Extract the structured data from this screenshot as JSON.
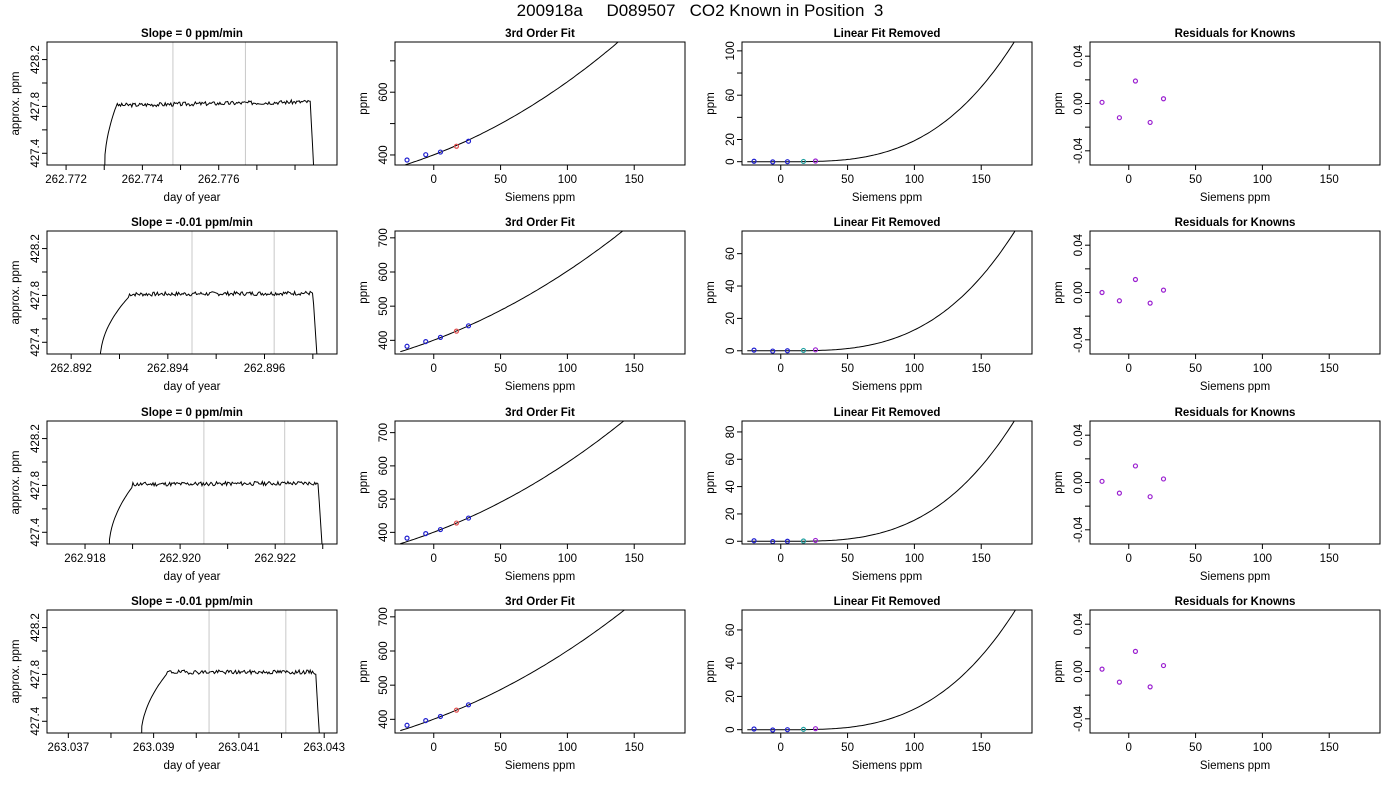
{
  "title": "200918a     D089507   CO2 Known in Position  3",
  "colors": {
    "trace": "#000000",
    "marker_line": "#c8c8c8",
    "dot_blue": "#1f1fd0",
    "dot_purple": "#9a1fd0",
    "dot_red": "#e05050",
    "dot_cyan": "#20a0a0"
  },
  "chart_data": [
    {
      "type": "line",
      "panel": "time-series",
      "row": 1,
      "title": "Slope =  0  ppm/min",
      "xlabel": "day of year",
      "ylabel": "approx. ppm",
      "xlim": [
        262.7715,
        262.7791
      ],
      "ylim": [
        427.3,
        428.35
      ],
      "xticks": [
        262.772,
        262.773,
        262.774,
        262.775,
        262.776,
        262.777,
        262.778
      ],
      "xtick_labels": [
        "262.772",
        "",
        "262.774",
        "",
        "262.776",
        "",
        ""
      ],
      "yticks": [
        427.4,
        427.6,
        427.8,
        428.0,
        428.2
      ],
      "ytick_labels": [
        "427.4",
        "",
        "427.8",
        "",
        "428.2"
      ],
      "vlines": [
        262.7748,
        262.7767
      ],
      "profile": {
        "t_start": 262.773,
        "t_top": 262.7733,
        "t_end": 262.7784,
        "t_drop": 262.7785,
        "plateau": 427.81,
        "end": 427.84,
        "seed": 3
      }
    },
    {
      "type": "line",
      "panel": "fit",
      "row": 1,
      "title": "3rd Order Fit",
      "xlabel": "Siemens ppm",
      "ylabel": "ppm",
      "xlim": [
        -29,
        188
      ],
      "ylim": [
        368,
        760
      ],
      "xticks": [
        0,
        50,
        100,
        150
      ],
      "xtick_labels": [
        "0",
        "50",
        "100",
        "150"
      ],
      "yticks": [
        400,
        500,
        600,
        700
      ],
      "ytick_labels": [
        "400",
        "",
        "600",
        ""
      ],
      "curve": {
        "x_start": -25,
        "x_end": 180,
        "coef": [
          400.5,
          1.64,
          0.00655,
          3.2e-06
        ]
      },
      "points": [
        {
          "x": -20,
          "y": 384,
          "c": "blue"
        },
        {
          "x": -6,
          "y": 400.9,
          "c": "blue"
        },
        {
          "x": 5,
          "y": 409.2,
          "c": "blue"
        },
        {
          "x": 17,
          "y": 427.7,
          "c": "red"
        },
        {
          "x": 26,
          "y": 443.8,
          "c": "blue"
        }
      ]
    },
    {
      "type": "line",
      "panel": "linear-removed",
      "row": 1,
      "title": "Linear Fit Removed",
      "xlabel": "Siemens ppm",
      "ylabel": "ppm",
      "xlim": [
        -29,
        188
      ],
      "ylim": [
        -3,
        108
      ],
      "xticks": [
        0,
        50,
        100,
        150
      ],
      "xtick_labels": [
        "0",
        "50",
        "100",
        "150"
      ],
      "yticks": [
        0,
        20,
        40,
        60,
        80,
        100
      ],
      "ytick_labels": [
        "0",
        "20",
        "",
        "60",
        "",
        "100"
      ],
      "curve": {
        "x_start": -25,
        "x_end": 180,
        "coef": [
          0,
          0,
          0,
          0
        ],
        "cubic_from": 5,
        "cubic_scale": 2.21e-05
      },
      "points": [
        {
          "x": -20,
          "y": 0.4,
          "c": "blue"
        },
        {
          "x": -6,
          "y": -0.2,
          "c": "blue"
        },
        {
          "x": 5,
          "y": 0.0,
          "c": "blue"
        },
        {
          "x": 17,
          "y": 0.2,
          "c": "cyan"
        },
        {
          "x": 26,
          "y": 0.6,
          "c": "purple"
        }
      ]
    },
    {
      "type": "scatter",
      "panel": "residuals",
      "row": 1,
      "title": "Residuals for Knowns",
      "xlabel": "Siemens ppm",
      "ylabel": "ppm",
      "xlim": [
        -29,
        188
      ],
      "ylim": [
        -0.052,
        0.052
      ],
      "xticks": [
        0,
        50,
        100,
        150
      ],
      "xtick_labels": [
        "0",
        "50",
        "100",
        "150"
      ],
      "yticks": [
        -0.04,
        -0.02,
        0.0,
        0.02,
        0.04
      ],
      "ytick_labels": [
        "-0.04",
        "",
        "0.00",
        "",
        "0.04"
      ],
      "points": [
        {
          "x": -20,
          "y": 0.001,
          "c": "purple"
        },
        {
          "x": -7,
          "y": -0.012,
          "c": "purple"
        },
        {
          "x": 5,
          "y": 0.019,
          "c": "purple"
        },
        {
          "x": 16,
          "y": -0.016,
          "c": "purple"
        },
        {
          "x": 26,
          "y": 0.004,
          "c": "purple"
        }
      ]
    },
    {
      "type": "line",
      "panel": "time-series",
      "row": 2,
      "title": "Slope =  -0.01  ppm/min",
      "xlabel": "day of year",
      "ylabel": "approx. ppm",
      "xlim": [
        262.8915,
        262.8975
      ],
      "ylim": [
        427.3,
        428.35
      ],
      "xticks": [
        262.892,
        262.893,
        262.894,
        262.895,
        262.896,
        262.897
      ],
      "xtick_labels": [
        "262.892",
        "",
        "262.894",
        "",
        "262.896",
        ""
      ],
      "yticks": [
        427.4,
        427.6,
        427.8,
        428.0,
        428.2
      ],
      "ytick_labels": [
        "427.4",
        "",
        "427.8",
        "",
        "428.2"
      ],
      "vlines": [
        262.8945,
        262.8962
      ],
      "profile": {
        "t_start": 262.8926,
        "t_top": 262.8932,
        "t_end": 262.897,
        "t_drop": 262.8971,
        "plateau": 427.81,
        "end": 427.82,
        "seed": 7
      }
    },
    {
      "type": "line",
      "panel": "fit",
      "row": 2,
      "title": "3rd Order Fit",
      "xlabel": "Siemens ppm",
      "ylabel": "ppm",
      "xlim": [
        -29,
        188
      ],
      "ylim": [
        360,
        720
      ],
      "xticks": [
        0,
        50,
        100,
        150
      ],
      "xtick_labels": [
        "0",
        "50",
        "100",
        "150"
      ],
      "yticks": [
        400,
        500,
        600,
        700
      ],
      "ytick_labels": [
        "400",
        "500",
        "600",
        "700"
      ],
      "curve": {
        "x_start": -25,
        "x_end": 180,
        "coef": [
          400.5,
          1.48,
          0.0052,
          2.2e-06
        ]
      },
      "points": [
        {
          "x": -20,
          "y": 382.6,
          "c": "blue"
        },
        {
          "x": -6,
          "y": 396.3,
          "c": "blue"
        },
        {
          "x": 5,
          "y": 408.6,
          "c": "blue"
        },
        {
          "x": 17,
          "y": 427,
          "c": "red"
        },
        {
          "x": 26,
          "y": 442.5,
          "c": "blue"
        }
      ]
    },
    {
      "type": "line",
      "panel": "linear-removed",
      "row": 2,
      "title": "Linear Fit Removed",
      "xlabel": "Siemens ppm",
      "ylabel": "ppm",
      "xlim": [
        -29,
        188
      ],
      "ylim": [
        -2,
        74
      ],
      "xticks": [
        0,
        50,
        100,
        150
      ],
      "xtick_labels": [
        "0",
        "50",
        "100",
        "150"
      ],
      "yticks": [
        0,
        20,
        40,
        60
      ],
      "ytick_labels": [
        "0",
        "20",
        "40",
        "60"
      ],
      "curve": {
        "x_start": -25,
        "x_end": 180,
        "coef": [
          0,
          0,
          0,
          0
        ],
        "cubic_from": 5,
        "cubic_scale": 1.5e-05
      },
      "points": [
        {
          "x": -20,
          "y": 0.4,
          "c": "blue"
        },
        {
          "x": -6,
          "y": -0.2,
          "c": "blue"
        },
        {
          "x": 5,
          "y": 0.0,
          "c": "blue"
        },
        {
          "x": 17,
          "y": 0.2,
          "c": "cyan"
        },
        {
          "x": 26,
          "y": 0.6,
          "c": "purple"
        }
      ]
    },
    {
      "type": "scatter",
      "panel": "residuals",
      "row": 2,
      "title": "Residuals for Knowns",
      "xlabel": "Siemens ppm",
      "ylabel": "ppm",
      "xlim": [
        -29,
        188
      ],
      "ylim": [
        -0.052,
        0.052
      ],
      "xticks": [
        0,
        50,
        100,
        150
      ],
      "xtick_labels": [
        "0",
        "50",
        "100",
        "150"
      ],
      "yticks": [
        -0.04,
        -0.02,
        0.0,
        0.02,
        0.04
      ],
      "ytick_labels": [
        "-0.04",
        "",
        "0.00",
        "",
        "0.04"
      ],
      "points": [
        {
          "x": -20,
          "y": 0.0,
          "c": "purple"
        },
        {
          "x": -7,
          "y": -0.007,
          "c": "purple"
        },
        {
          "x": 5,
          "y": 0.011,
          "c": "purple"
        },
        {
          "x": 16,
          "y": -0.009,
          "c": "purple"
        },
        {
          "x": 26,
          "y": 0.002,
          "c": "purple"
        }
      ]
    },
    {
      "type": "line",
      "panel": "time-series",
      "row": 3,
      "title": "Slope =  0  ppm/min",
      "xlabel": "day of year",
      "ylabel": "approx. ppm",
      "xlim": [
        262.9172,
        262.9233
      ],
      "ylim": [
        427.3,
        428.35
      ],
      "xticks": [
        262.918,
        262.919,
        262.92,
        262.921,
        262.922,
        262.923
      ],
      "xtick_labels": [
        "262.918",
        "",
        "262.920",
        "",
        "262.922",
        ""
      ],
      "yticks": [
        427.4,
        427.6,
        427.8,
        428.0,
        428.2
      ],
      "ytick_labels": [
        "427.4",
        "",
        "427.8",
        "",
        "428.2"
      ],
      "vlines": [
        262.9205,
        262.9222
      ],
      "profile": {
        "t_start": 262.9185,
        "t_top": 262.919,
        "t_end": 262.9229,
        "t_drop": 262.923,
        "plateau": 427.81,
        "end": 427.82,
        "seed": 11
      }
    },
    {
      "type": "line",
      "panel": "fit",
      "row": 3,
      "title": "3rd Order Fit",
      "xlabel": "Siemens ppm",
      "ylabel": "ppm",
      "xlim": [
        -29,
        188
      ],
      "ylim": [
        365,
        735
      ],
      "xticks": [
        0,
        50,
        100,
        150
      ],
      "xtick_labels": [
        "0",
        "50",
        "100",
        "150"
      ],
      "yticks": [
        400,
        500,
        600,
        700
      ],
      "ytick_labels": [
        "400",
        "500",
        "600",
        "700"
      ],
      "curve": {
        "x_start": -25,
        "x_end": 180,
        "coef": [
          400.5,
          1.52,
          0.0055,
          2.6e-06
        ]
      },
      "points": [
        {
          "x": -20,
          "y": 382.7,
          "c": "blue"
        },
        {
          "x": -6,
          "y": 396.3,
          "c": "blue"
        },
        {
          "x": 5,
          "y": 408.4,
          "c": "blue"
        },
        {
          "x": 17,
          "y": 428,
          "c": "red"
        },
        {
          "x": 26,
          "y": 443,
          "c": "blue"
        }
      ]
    },
    {
      "type": "line",
      "panel": "linear-removed",
      "row": 3,
      "title": "Linear Fit Removed",
      "xlabel": "Siemens ppm",
      "ylabel": "ppm",
      "xlim": [
        -29,
        188
      ],
      "ylim": [
        -2,
        88
      ],
      "xticks": [
        0,
        50,
        100,
        150
      ],
      "xtick_labels": [
        "0",
        "50",
        "100",
        "150"
      ],
      "yticks": [
        0,
        20,
        40,
        60,
        80
      ],
      "ytick_labels": [
        "0",
        "20",
        "40",
        "60",
        "80"
      ],
      "curve": {
        "x_start": -25,
        "x_end": 180,
        "coef": [
          0,
          0,
          0,
          0
        ],
        "cubic_from": 5,
        "cubic_scale": 1.8e-05
      },
      "points": [
        {
          "x": -20,
          "y": 0.4,
          "c": "blue"
        },
        {
          "x": -6,
          "y": -0.2,
          "c": "blue"
        },
        {
          "x": 5,
          "y": 0.0,
          "c": "blue"
        },
        {
          "x": 17,
          "y": 0.2,
          "c": "cyan"
        },
        {
          "x": 26,
          "y": 0.6,
          "c": "purple"
        }
      ]
    },
    {
      "type": "scatter",
      "panel": "residuals",
      "row": 3,
      "title": "Residuals for Knowns",
      "xlabel": "Siemens ppm",
      "ylabel": "ppm",
      "xlim": [
        -29,
        188
      ],
      "ylim": [
        -0.052,
        0.052
      ],
      "xticks": [
        0,
        50,
        100,
        150
      ],
      "xtick_labels": [
        "0",
        "50",
        "100",
        "150"
      ],
      "yticks": [
        -0.04,
        -0.02,
        0.0,
        0.02,
        0.04
      ],
      "ytick_labels": [
        "-0.04",
        "",
        "0.00",
        "",
        "0.04"
      ],
      "points": [
        {
          "x": -20,
          "y": 0.001,
          "c": "purple"
        },
        {
          "x": -7,
          "y": -0.009,
          "c": "purple"
        },
        {
          "x": 5,
          "y": 0.014,
          "c": "purple"
        },
        {
          "x": 16,
          "y": -0.012,
          "c": "purple"
        },
        {
          "x": 26,
          "y": 0.003,
          "c": "purple"
        }
      ]
    },
    {
      "type": "line",
      "panel": "time-series",
      "row": 4,
      "title": "Slope =  -0.01  ppm/min",
      "xlabel": "day of year",
      "ylabel": "approx. ppm",
      "xlim": [
        263.0365,
        263.0433
      ],
      "ylim": [
        427.3,
        428.35
      ],
      "xticks": [
        263.037,
        263.038,
        263.039,
        263.04,
        263.041,
        263.042,
        263.043
      ],
      "xtick_labels": [
        "263.037",
        "",
        "263.039",
        "",
        "263.041",
        "",
        "263.043"
      ],
      "yticks": [
        427.4,
        427.6,
        427.8,
        428.0,
        428.2
      ],
      "ytick_labels": [
        "427.4",
        "",
        "427.8",
        "",
        "428.2"
      ],
      "vlines": [
        263.0403,
        263.0421
      ],
      "profile": {
        "t_start": 263.0387,
        "t_top": 263.0393,
        "t_end": 263.0428,
        "t_drop": 263.0429,
        "plateau": 427.82,
        "end": 427.82,
        "seed": 19
      }
    },
    {
      "type": "line",
      "panel": "fit",
      "row": 4,
      "title": "3rd Order Fit",
      "xlabel": "Siemens ppm",
      "ylabel": "ppm",
      "xlim": [
        -29,
        188
      ],
      "ylim": [
        360,
        720
      ],
      "xticks": [
        0,
        50,
        100,
        150
      ],
      "xtick_labels": [
        "0",
        "50",
        "100",
        "150"
      ],
      "yticks": [
        400,
        500,
        600,
        700
      ],
      "ytick_labels": [
        "400",
        "500",
        "600",
        "700"
      ],
      "curve": {
        "x_start": -25,
        "x_end": 180,
        "coef": [
          400.5,
          1.47,
          0.0051,
          2.1e-06
        ]
      },
      "points": [
        {
          "x": -20,
          "y": 382.6,
          "c": "blue"
        },
        {
          "x": -6,
          "y": 396.3,
          "c": "blue"
        },
        {
          "x": 5,
          "y": 408.4,
          "c": "blue"
        },
        {
          "x": 17,
          "y": 427,
          "c": "red"
        },
        {
          "x": 26,
          "y": 442.5,
          "c": "blue"
        }
      ]
    },
    {
      "type": "line",
      "panel": "linear-removed",
      "row": 4,
      "title": "Linear Fit Removed",
      "xlabel": "Siemens ppm",
      "ylabel": "ppm",
      "xlim": [
        -29,
        188
      ],
      "ylim": [
        -2,
        72
      ],
      "xticks": [
        0,
        50,
        100,
        150
      ],
      "xtick_labels": [
        "0",
        "50",
        "100",
        "150"
      ],
      "yticks": [
        0,
        20,
        40,
        60
      ],
      "ytick_labels": [
        "0",
        "20",
        "40",
        "60"
      ],
      "curve": {
        "x_start": -25,
        "x_end": 180,
        "coef": [
          0,
          0,
          0,
          0
        ],
        "cubic_from": 5,
        "cubic_scale": 1.45e-05
      },
      "points": [
        {
          "x": -20,
          "y": 0.4,
          "c": "blue"
        },
        {
          "x": -6,
          "y": -0.2,
          "c": "blue"
        },
        {
          "x": 5,
          "y": 0.0,
          "c": "blue"
        },
        {
          "x": 17,
          "y": 0.2,
          "c": "cyan"
        },
        {
          "x": 26,
          "y": 0.6,
          "c": "purple"
        }
      ]
    },
    {
      "type": "scatter",
      "panel": "residuals",
      "row": 4,
      "title": "Residuals for Knowns",
      "xlabel": "Siemens ppm",
      "ylabel": "ppm",
      "xlim": [
        -29,
        188
      ],
      "ylim": [
        -0.052,
        0.052
      ],
      "xticks": [
        0,
        50,
        100,
        150
      ],
      "xtick_labels": [
        "0",
        "50",
        "100",
        "150"
      ],
      "yticks": [
        -0.04,
        -0.02,
        0.0,
        0.02,
        0.04
      ],
      "ytick_labels": [
        "-0.04",
        "",
        "0.00",
        "",
        "0.04"
      ],
      "points": [
        {
          "x": -20,
          "y": 0.002,
          "c": "purple"
        },
        {
          "x": -7,
          "y": -0.009,
          "c": "purple"
        },
        {
          "x": 5,
          "y": 0.017,
          "c": "purple"
        },
        {
          "x": 16,
          "y": -0.013,
          "c": "purple"
        },
        {
          "x": 26,
          "y": 0.005,
          "c": "purple"
        }
      ]
    }
  ]
}
